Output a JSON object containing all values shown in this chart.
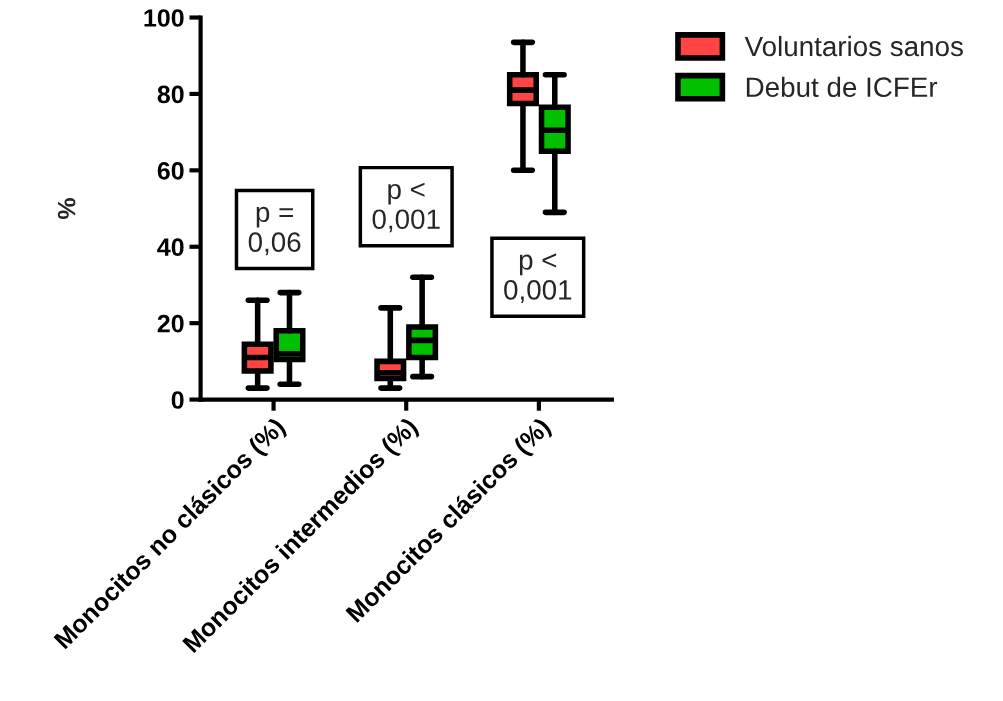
{
  "chart_data": {
    "type": "box",
    "ylabel": "%",
    "categories": [
      "Monocitos no clásicos (%)",
      "Monocitos intermedios (%)",
      "Monocitos clásicos (%)"
    ],
    "series": [
      {
        "name": "Voluntarios sanos",
        "color": "#ff4444",
        "boxes": [
          {
            "low": 3,
            "q1": 7.5,
            "median": 11,
            "q3": 14.5,
            "high": 26
          },
          {
            "low": 3,
            "q1": 5.5,
            "median": 7,
            "q3": 10,
            "high": 24
          },
          {
            "low": 60,
            "q1": 77.5,
            "median": 81,
            "q3": 85,
            "high": 93.5
          }
        ]
      },
      {
        "name": "Debut de ICFEr",
        "color": "#00c000",
        "boxes": [
          {
            "low": 4,
            "q1": 10.5,
            "median": 12,
            "q3": 18,
            "high": 28
          },
          {
            "low": 6,
            "q1": 11,
            "median": 15.5,
            "q3": 19,
            "high": 32
          },
          {
            "low": 49,
            "q1": 65,
            "median": 70.5,
            "q3": 76.5,
            "high": 85
          }
        ]
      }
    ],
    "ylim": [
      0,
      100
    ],
    "yticks": [
      0,
      20,
      40,
      60,
      80,
      100
    ],
    "grid": false,
    "legend": "top right",
    "annotations": [
      "p =\n0,06",
      "p <\n0,001",
      "p <\n0,001"
    ]
  }
}
